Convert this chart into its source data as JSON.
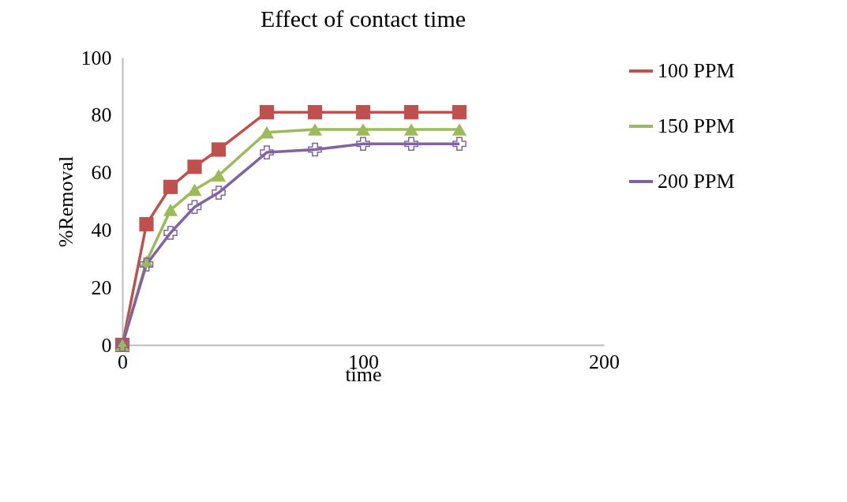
{
  "chart_data": {
    "type": "line",
    "title": "Effect of contact time",
    "xlabel": "time",
    "ylabel": "%Removal",
    "x": [
      0,
      10,
      20,
      30,
      40,
      60,
      80,
      100,
      120,
      140
    ],
    "series": [
      {
        "name": "100 PPM",
        "color": "#c0504d",
        "marker": "square",
        "values": [
          0,
          42,
          55,
          62,
          68,
          81,
          81,
          81,
          81,
          81
        ]
      },
      {
        "name": "150 PPM",
        "color": "#9bbb59",
        "marker": "triangle",
        "values": [
          0,
          29,
          47,
          54,
          59,
          74,
          75,
          75,
          75,
          75
        ]
      },
      {
        "name": "200 PPM",
        "color": "#8064a2",
        "marker": "cross",
        "values": [
          0,
          28,
          39,
          48,
          53,
          67,
          68,
          70,
          70,
          70
        ]
      }
    ],
    "xlim": [
      0,
      200
    ],
    "xticks": [
      0,
      100,
      200
    ],
    "ylim": [
      0,
      100
    ],
    "yticks": [
      0,
      20,
      40,
      60,
      80,
      100
    ],
    "grid": false,
    "legend": "right"
  }
}
